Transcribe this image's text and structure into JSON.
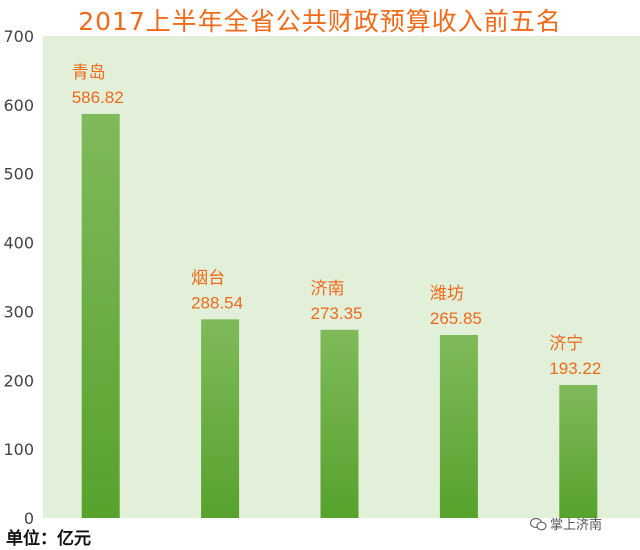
{
  "chart_data": {
    "type": "bar",
    "title": "2017上半年全省公共财政预算收入前五名",
    "categories": [
      "青岛",
      "烟台",
      "济南",
      "潍坊",
      "济宁"
    ],
    "values": [
      586.82,
      288.54,
      273.35,
      265.85,
      193.22
    ],
    "value_labels": [
      "586.82",
      "288.54",
      "273.35",
      "265.85",
      "193.22"
    ],
    "ylim": [
      0,
      700
    ],
    "yticks": [
      0,
      100,
      200,
      300,
      400,
      500,
      600,
      700
    ],
    "unit_label": "单位：亿元",
    "grid": false,
    "colors": {
      "plot_bg": "#e2efd9",
      "bar_top": "#7fba5a",
      "bar_bottom": "#57a22d",
      "label": "#f06a1a",
      "tick": "#444444"
    }
  },
  "watermark": "掌上济南"
}
